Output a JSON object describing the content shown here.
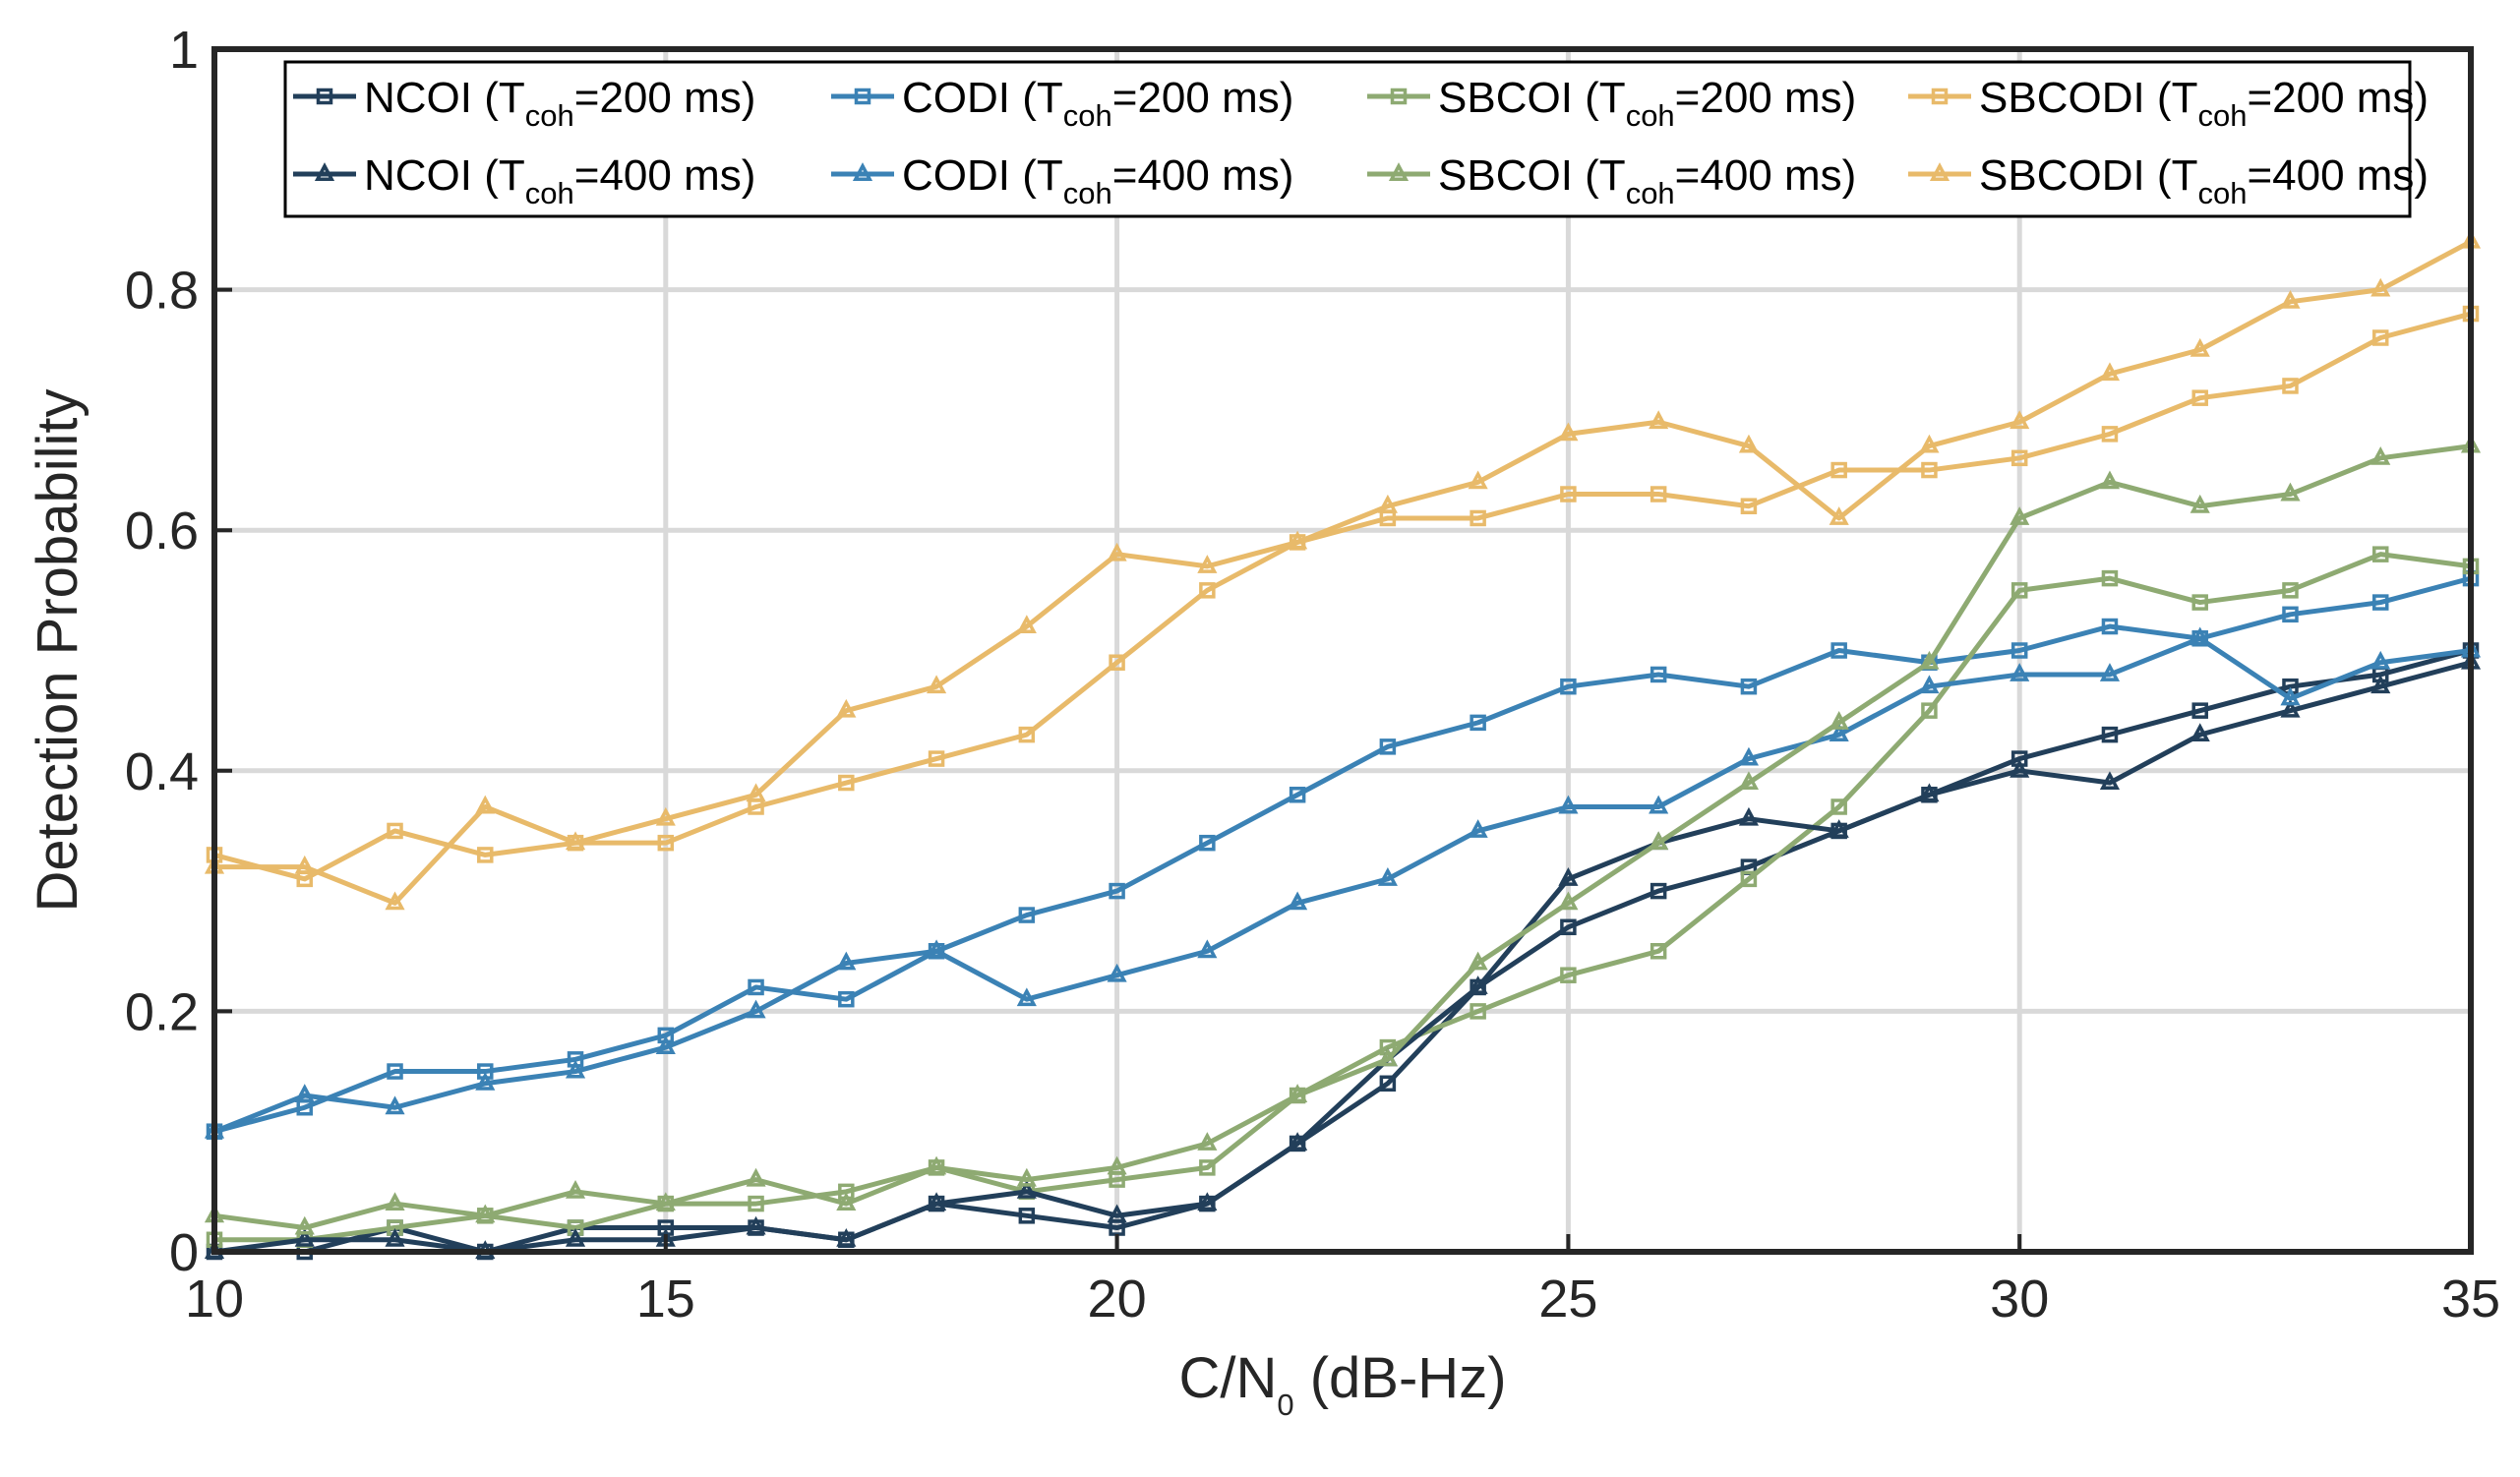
{
  "chart_data": {
    "type": "line",
    "title": "",
    "xlabel": {
      "main": "C/N",
      "sub": "0",
      "rest": " (dB-Hz)"
    },
    "ylabel": "Detection Probability",
    "xlim": [
      10,
      35
    ],
    "ylim": [
      0,
      1
    ],
    "xticks": [
      10,
      15,
      20,
      25,
      30,
      35
    ],
    "yticks": [
      0,
      0.2,
      0.4,
      0.6,
      0.8,
      1
    ],
    "ytick_labels": [
      "0",
      "0.2",
      "0.4",
      "0.6",
      "0.8",
      "1"
    ],
    "grid": true,
    "legend_position": "top",
    "x": [
      10,
      11,
      12,
      13,
      14,
      15,
      16,
      17,
      18,
      19,
      20,
      21,
      22,
      23,
      24,
      25,
      26,
      27,
      28,
      29,
      30,
      31,
      32,
      33,
      34,
      35
    ],
    "series": [
      {
        "name": "NCOI (Tcoh=200 ms)",
        "label_parts": [
          "NCOI (T",
          "coh",
          "=200 ms)"
        ],
        "marker": "square",
        "color": "#223f5a",
        "values": [
          0,
          0,
          0.02,
          0,
          0.02,
          0.02,
          0.02,
          0.01,
          0.04,
          0.03,
          0.02,
          0.04,
          0.09,
          0.14,
          0.22,
          0.27,
          0.3,
          0.32,
          0.35,
          0.38,
          0.41,
          0.43,
          0.45,
          0.47,
          0.48,
          0.5
        ]
      },
      {
        "name": "CODI (Tcoh=200 ms)",
        "label_parts": [
          "CODI (T",
          "coh",
          "=200 ms)"
        ],
        "marker": "square",
        "color": "#3b82b5",
        "values": [
          0.1,
          0.12,
          0.15,
          0.15,
          0.16,
          0.18,
          0.22,
          0.21,
          0.25,
          0.28,
          0.3,
          0.34,
          0.38,
          0.42,
          0.44,
          0.47,
          0.48,
          0.47,
          0.5,
          0.49,
          0.5,
          0.52,
          0.51,
          0.53,
          0.54,
          0.56
        ]
      },
      {
        "name": "SBCOI (Tcoh=200 ms)",
        "label_parts": [
          "SBCOI (T",
          "coh",
          "=200 ms)"
        ],
        "marker": "square",
        "color": "#8eaa72",
        "values": [
          0.01,
          0.01,
          0.02,
          0.03,
          0.02,
          0.04,
          0.04,
          0.05,
          0.07,
          0.05,
          0.06,
          0.07,
          0.13,
          0.17,
          0.2,
          0.23,
          0.25,
          0.31,
          0.37,
          0.45,
          0.55,
          0.56,
          0.54,
          0.55,
          0.58,
          0.57
        ]
      },
      {
        "name": "SBCODI (Tcoh=200 ms)",
        "label_parts": [
          "SBCODI (T",
          "coh",
          "=200 ms)"
        ],
        "marker": "square",
        "color": "#e8ba6a",
        "values": [
          0.33,
          0.31,
          0.35,
          0.33,
          0.34,
          0.34,
          0.37,
          0.39,
          0.41,
          0.43,
          0.49,
          0.55,
          0.59,
          0.61,
          0.61,
          0.63,
          0.63,
          0.62,
          0.65,
          0.65,
          0.66,
          0.68,
          0.71,
          0.72,
          0.76,
          0.78
        ]
      },
      {
        "name": "NCOI (Tcoh=400 ms)",
        "label_parts": [
          "NCOI (T",
          "coh",
          "=400 ms)"
        ],
        "marker": "triangle",
        "color": "#223f5a",
        "values": [
          0,
          0.01,
          0.01,
          0,
          0.01,
          0.01,
          0.02,
          0.01,
          0.04,
          0.05,
          0.03,
          0.04,
          0.09,
          0.16,
          0.22,
          0.31,
          0.34,
          0.36,
          0.35,
          0.38,
          0.4,
          0.39,
          0.43,
          0.45,
          0.47,
          0.49
        ]
      },
      {
        "name": "CODI (Tcoh=400 ms)",
        "label_parts": [
          "CODI (T",
          "coh",
          "=400 ms)"
        ],
        "marker": "triangle",
        "color": "#3b82b5",
        "values": [
          0.1,
          0.13,
          0.12,
          0.14,
          0.15,
          0.17,
          0.2,
          0.24,
          0.25,
          0.21,
          0.23,
          0.25,
          0.29,
          0.31,
          0.35,
          0.37,
          0.37,
          0.41,
          0.43,
          0.47,
          0.48,
          0.48,
          0.51,
          0.46,
          0.49,
          0.5
        ]
      },
      {
        "name": "SBCOI (Tcoh=400 ms)",
        "label_parts": [
          "SBCOI (T",
          "coh",
          "=400 ms)"
        ],
        "marker": "triangle",
        "color": "#8eaa72",
        "values": [
          0.03,
          0.02,
          0.04,
          0.03,
          0.05,
          0.04,
          0.06,
          0.04,
          0.07,
          0.06,
          0.07,
          0.09,
          0.13,
          0.16,
          0.24,
          0.29,
          0.34,
          0.39,
          0.44,
          0.49,
          0.61,
          0.64,
          0.62,
          0.63,
          0.66,
          0.67
        ]
      },
      {
        "name": "SBCODI (Tcoh=400 ms)",
        "label_parts": [
          "SBCODI (T",
          "coh",
          "=400 ms)"
        ],
        "marker": "triangle",
        "color": "#e8ba6a",
        "values": [
          0.32,
          0.32,
          0.29,
          0.37,
          0.34,
          0.36,
          0.38,
          0.45,
          0.47,
          0.52,
          0.58,
          0.57,
          0.59,
          0.62,
          0.64,
          0.68,
          0.69,
          0.67,
          0.61,
          0.67,
          0.69,
          0.73,
          0.75,
          0.79,
          0.8,
          0.84
        ]
      }
    ]
  }
}
